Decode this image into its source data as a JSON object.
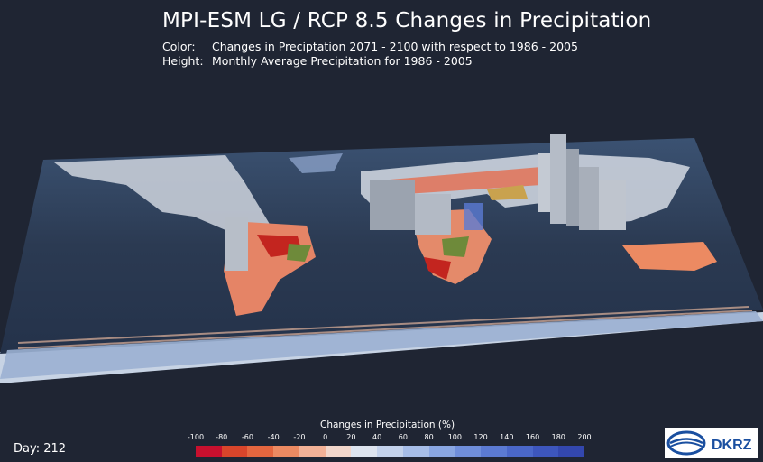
{
  "header": {
    "title": "MPI-ESM LG / RCP 8.5 Changes in Precipitation",
    "color_key": "Color:",
    "color_desc": "Changes in Preciptation 2071 - 2100 with respect to 1986 - 2005",
    "height_key": "Height:",
    "height_desc": "Monthly Average Precipitation for 1986 - 2005"
  },
  "day": "Day: 212",
  "colorbar": {
    "title": "Changes in Precipitation (%)",
    "ticks": [
      "-100",
      "-80",
      "-60",
      "-40",
      "-20",
      "0",
      "20",
      "40",
      "60",
      "80",
      "100",
      "120",
      "140",
      "160",
      "180",
      "200"
    ],
    "colors": [
      "#c8102e",
      "#d8452b",
      "#e4663f",
      "#ec8a62",
      "#f2b197",
      "#f1d6cb",
      "#dde4ef",
      "#c3d2ec",
      "#a6bde8",
      "#89a6e2",
      "#6f8edb",
      "#5b7ad3",
      "#4a67c9",
      "#3d56bd",
      "#3347ae"
    ]
  },
  "logo": {
    "text": "DKRZ",
    "color": "#1a4fa0"
  }
}
